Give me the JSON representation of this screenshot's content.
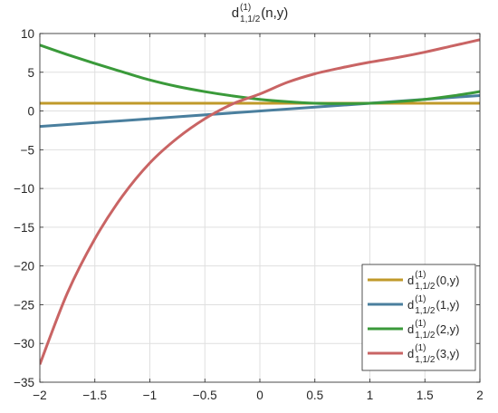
{
  "chart_data": {
    "type": "line",
    "title": {
      "main": "d",
      "sup": "(1)",
      "sub": "1,1/2",
      "args": "(n,y)"
    },
    "xlabel": "",
    "ylabel": "",
    "xlim": [
      -2,
      2
    ],
    "ylim": [
      -35,
      10
    ],
    "xticks": [
      -2,
      -1.5,
      -1,
      -0.5,
      0,
      0.5,
      1,
      1.5,
      2
    ],
    "xtick_labels": [
      "−2",
      "−1.5",
      "−1",
      "−0.5",
      "0",
      "0.5",
      "1",
      "1.5",
      "2"
    ],
    "yticks": [
      10,
      5,
      0,
      -5,
      -10,
      -15,
      -20,
      -25,
      -30,
      -35
    ],
    "ytick_labels": [
      "10",
      "5",
      "0",
      "−5",
      "−10",
      "−15",
      "−20",
      "−25",
      "−30",
      "−35"
    ],
    "grid": true,
    "legend_position": "bottom-right",
    "series": [
      {
        "name": {
          "main": "d",
          "sup": "(1)",
          "sub": "1,1/2",
          "args": "(0,y)"
        },
        "color": "#C09A2A",
        "x": [
          -2,
          2
        ],
        "y": [
          1,
          1
        ]
      },
      {
        "name": {
          "main": "d",
          "sup": "(1)",
          "sub": "1,1/2",
          "args": "(1,y)"
        },
        "color": "#4A7F9E",
        "x": [
          -2,
          2
        ],
        "y": [
          -2,
          2
        ]
      },
      {
        "name": {
          "main": "d",
          "sup": "(1)",
          "sub": "1,1/2",
          "args": "(2,y)"
        },
        "color": "#3A9A3A",
        "x": [
          -2,
          -1.75,
          -1.5,
          -1.25,
          -1,
          -0.75,
          -0.5,
          -0.25,
          0,
          0.25,
          0.5,
          0.75,
          1,
          1.25,
          1.5,
          1.75,
          2
        ],
        "y": [
          8.5,
          7.28,
          6.13,
          5.05,
          4.0,
          3.16,
          2.5,
          1.95,
          1.5,
          1.2,
          1.0,
          0.95,
          1.0,
          1.2,
          1.5,
          1.95,
          2.5
        ]
      },
      {
        "name": {
          "main": "d",
          "sup": "(1)",
          "sub": "1,1/2",
          "args": "(3,y)"
        },
        "color": "#C96464",
        "x": [
          -2,
          -1.75,
          -1.5,
          -1.25,
          -1,
          -0.75,
          -0.5,
          -0.25,
          0,
          0.25,
          0.5,
          0.75,
          1,
          1.25,
          1.5,
          1.75,
          2
        ],
        "y": [
          -32.7,
          -23.5,
          -16.5,
          -11.0,
          -6.7,
          -3.5,
          -1.0,
          0.9,
          2.2,
          3.7,
          4.8,
          5.6,
          6.3,
          6.9,
          7.6,
          8.4,
          9.2
        ]
      }
    ]
  }
}
